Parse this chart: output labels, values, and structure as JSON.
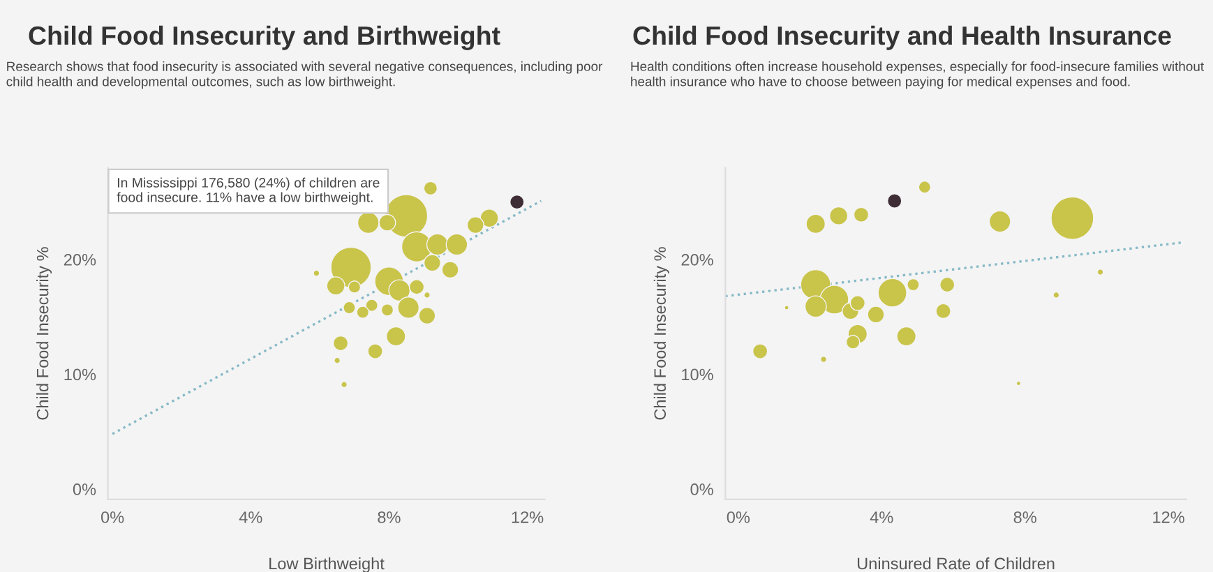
{
  "chart_data": [
    {
      "type": "bubble",
      "title": "Child Food Insecurity and Birthweight",
      "subtitle": "Research shows that food insecurity is associated with several negative consequences, including poor child health and developmental outcomes, such as low birthweight.",
      "xlabel": "Low Birthweight",
      "ylabel": "Child Food Insecurity %",
      "xlim": [
        -0.13,
        12.5
      ],
      "ylim": [
        -0.9,
        28
      ],
      "xticks": [
        {
          "value": 0,
          "label": "0%"
        },
        {
          "value": 4,
          "label": "4%"
        },
        {
          "value": 8,
          "label": "8%"
        },
        {
          "value": 12,
          "label": "12%"
        }
      ],
      "yticks": [
        {
          "value": 0,
          "label": "0%"
        },
        {
          "value": 10,
          "label": "10%"
        },
        {
          "value": 20,
          "label": "20%"
        }
      ],
      "grid": false,
      "legend": false,
      "annotations": [
        "In Mississippi 176,580 (24%) of children are food insecure. 11% have a low birthweight."
      ],
      "series": [
        {
          "color": "#c9c44a",
          "x": [
            9.2,
            8.5,
            7.4,
            7.95,
            8.8,
            9.4,
            9.96,
            10.5,
            10.9,
            9.25,
            9.77,
            6.9,
            5.9,
            6.46,
            7.0,
            8.0,
            8.3,
            8.8,
            9.1,
            8.56,
            7.5,
            7.24,
            6.85,
            7.95,
            9.1,
            6.6,
            7.6,
            8.2,
            6.5,
            6.7
          ],
          "values": [
            26.2,
            23.8,
            23.2,
            23.2,
            21.1,
            21.3,
            21.3,
            23.0,
            23.6,
            19.7,
            19.1,
            19.3,
            18.8,
            17.7,
            17.6,
            18.1,
            17.3,
            17.6,
            16.9,
            15.8,
            16.0,
            15.4,
            15.8,
            15.6,
            15.1,
            12.7,
            12.0,
            13.3,
            11.2,
            9.1
          ],
          "sizes": [
            0.1,
            1,
            0.25,
            0.15,
            0.5,
            0.25,
            0.25,
            0.15,
            0.18,
            0.15,
            0.15,
            0.9,
            0.02,
            0.18,
            0.08,
            0.45,
            0.25,
            0.12,
            0.02,
            0.25,
            0.08,
            0.08,
            0.08,
            0.08,
            0.15,
            0.12,
            0.12,
            0.2,
            0.02,
            0.02
          ]
        },
        {
          "color": "#3f2d35",
          "x": [
            11.7
          ],
          "values": [
            25.0
          ],
          "sizes": [
            0.11
          ]
        },
        {
          "type": "line",
          "color": "#86b9c6",
          "line_style": "dotted",
          "x": [
            0,
            12.4
          ],
          "values": [
            4.8,
            25.1
          ]
        }
      ]
    },
    {
      "type": "bubble",
      "title": "Child Food Insecurity and Health Insurance",
      "subtitle": "Health conditions often increase household expenses, especially for food-insecure families without health insurance who have to choose between paying for medical expenses and food.",
      "xlabel": "Uninsured Rate of Children",
      "ylabel": "Child Food Insecurity %",
      "xlim": [
        -0.36,
        12.5
      ],
      "ylim": [
        -0.9,
        28
      ],
      "xticks": [
        {
          "value": 0,
          "label": "0%"
        },
        {
          "value": 4,
          "label": "4%"
        },
        {
          "value": 8,
          "label": "8%"
        },
        {
          "value": 12,
          "label": "12%"
        }
      ],
      "yticks": [
        {
          "value": 0,
          "label": "0%"
        },
        {
          "value": 10,
          "label": "10%"
        },
        {
          "value": 20,
          "label": "20%"
        }
      ],
      "grid": false,
      "legend": false,
      "series": [
        {
          "color": "#c9c44a",
          "x": [
            5.2,
            2.8,
            3.43,
            2.16,
            7.3,
            9.32,
            10.1,
            8.87,
            7.82,
            2.16,
            4.3,
            4.88,
            5.83,
            2.16,
            2.68,
            3.13,
            3.33,
            3.84,
            5.72,
            1.35,
            3.33,
            3.2,
            4.69,
            0.61,
            2.38
          ],
          "values": [
            26.3,
            23.8,
            23.9,
            23.1,
            23.3,
            23.6,
            18.9,
            16.9,
            9.2,
            17.8,
            17.1,
            17.8,
            17.8,
            15.9,
            16.5,
            15.5,
            16.2,
            15.2,
            15.5,
            15.8,
            13.5,
            12.8,
            13.3,
            12.0,
            11.3
          ],
          "sizes": [
            0.08,
            0.18,
            0.12,
            0.2,
            0.25,
            1,
            0.02,
            0.02,
            0.01,
            0.5,
            0.45,
            0.08,
            0.12,
            0.25,
            0.45,
            0.15,
            0.12,
            0.15,
            0.12,
            0.01,
            0.2,
            0.1,
            0.2,
            0.12,
            0.02
          ]
        },
        {
          "color": "#3f2d35",
          "x": [
            4.36
          ],
          "values": [
            25.1
          ],
          "sizes": [
            0.11
          ]
        },
        {
          "type": "line",
          "color": "#86b9c6",
          "line_style": "dotted",
          "x": [
            -0.36,
            12.45
          ],
          "values": [
            16.8,
            21.5
          ]
        }
      ]
    }
  ]
}
